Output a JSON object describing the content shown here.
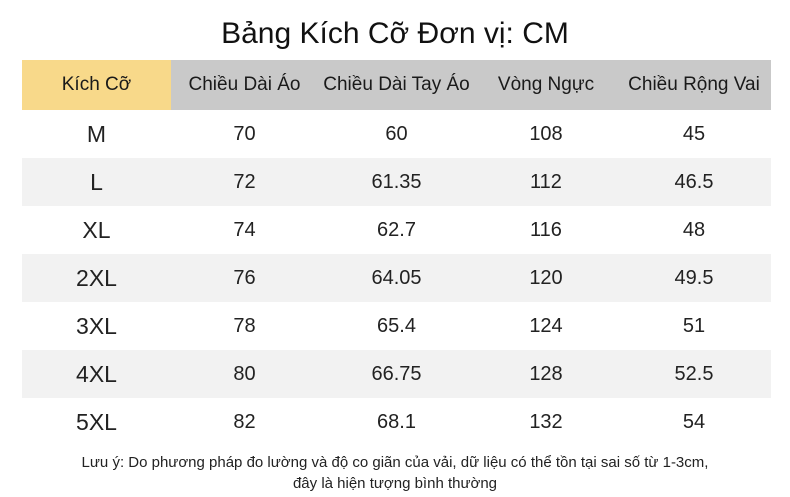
{
  "title": "Bảng Kích Cỡ Đơn vị: CM",
  "table": {
    "headers": [
      "Kích Cỡ",
      "Chiều Dài Áo",
      "Chiều Dài Tay Áo",
      "Vòng Ngực",
      "Chiều Rộng Vai"
    ],
    "rows": [
      [
        "M",
        "70",
        "60",
        "108",
        "45"
      ],
      [
        "L",
        "72",
        "61.35",
        "112",
        "46.5"
      ],
      [
        "XL",
        "74",
        "62.7",
        "116",
        "48"
      ],
      [
        "2XL",
        "76",
        "64.05",
        "120",
        "49.5"
      ],
      [
        "3XL",
        "78",
        "65.4",
        "124",
        "51"
      ],
      [
        "4XL",
        "80",
        "66.75",
        "128",
        "52.5"
      ],
      [
        "5XL",
        "82",
        "68.1",
        "132",
        "54"
      ]
    ]
  },
  "note": {
    "line1": "Lưu ý: Do phương pháp đo lường và độ co giãn của vải, dữ liệu có thể tồn tại sai số từ 1-3cm,",
    "line2": "đây là hiện tượng bình thường"
  },
  "colors": {
    "header_size": "#f8d98a",
    "header_other": "#c9c9c9",
    "row_alt": "#f2f2f2"
  }
}
